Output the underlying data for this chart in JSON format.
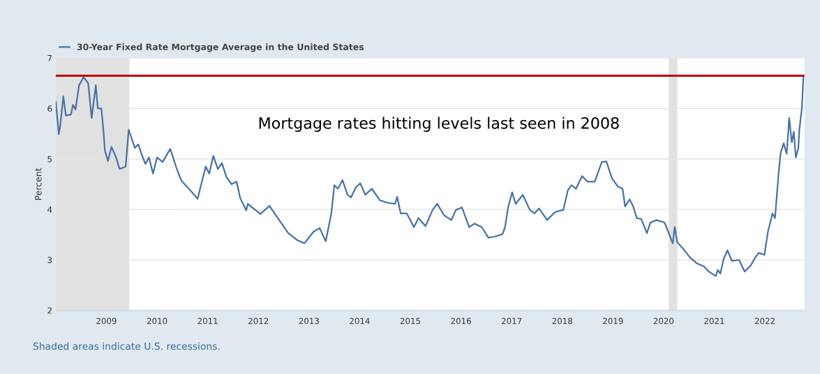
{
  "chart_data": {
    "type": "line",
    "ylabel": "Percent",
    "x": [
      2008.0,
      2008.06,
      2008.09,
      2008.15,
      2008.2,
      2008.3,
      2008.34,
      2008.39,
      2008.46,
      2008.55,
      2008.64,
      2008.71,
      2008.79,
      2008.83,
      2008.9,
      2008.94,
      2008.97,
      2009.03,
      2009.1,
      2009.19,
      2009.26,
      2009.38,
      2009.44,
      2009.56,
      2009.63,
      2009.7,
      2009.77,
      2009.84,
      2009.92,
      2010.0,
      2010.11,
      2010.26,
      2010.39,
      2010.48,
      2010.69,
      2010.8,
      2010.88,
      2010.96,
      2011.03,
      2011.11,
      2011.2,
      2011.28,
      2011.37,
      2011.47,
      2011.57,
      2011.64,
      2011.76,
      2011.79,
      2012.04,
      2012.22,
      2012.41,
      2012.59,
      2012.77,
      2012.91,
      2013.09,
      2013.21,
      2013.33,
      2013.44,
      2013.5,
      2013.57,
      2013.66,
      2013.76,
      2013.83,
      2013.92,
      2014.01,
      2014.11,
      2014.24,
      2014.4,
      2014.56,
      2014.7,
      2014.74,
      2014.81,
      2014.93,
      2015.07,
      2015.16,
      2015.3,
      2015.44,
      2015.53,
      2015.67,
      2015.81,
      2015.9,
      2016.02,
      2016.16,
      2016.27,
      2016.41,
      2016.54,
      2016.66,
      2016.82,
      2016.87,
      2016.93,
      2017.01,
      2017.08,
      2017.22,
      2017.36,
      2017.45,
      2017.54,
      2017.7,
      2017.86,
      2018.02,
      2018.11,
      2018.18,
      2018.27,
      2018.39,
      2018.5,
      2018.64,
      2018.78,
      2018.87,
      2018.98,
      2019.1,
      2019.19,
      2019.24,
      2019.33,
      2019.4,
      2019.47,
      2019.56,
      2019.67,
      2019.74,
      2019.86,
      2020.02,
      2020.11,
      2020.18,
      2020.22,
      2020.27,
      2020.38,
      2020.52,
      2020.66,
      2020.8,
      2020.89,
      2021.03,
      2021.07,
      2021.12,
      2021.19,
      2021.26,
      2021.35,
      2021.49,
      2021.6,
      2021.72,
      2021.81,
      2021.88,
      2021.99,
      2022.06,
      2022.15,
      2022.2,
      2022.27,
      2022.31,
      2022.37,
      2022.43,
      2022.48,
      2022.53,
      2022.57,
      2022.61,
      2022.66,
      2022.68,
      2022.73,
      2022.76
    ],
    "series": [
      {
        "name": "30-Year Fixed Rate Mortgage Average in the United States",
        "color": "#4572a7",
        "values": [
          6.14,
          5.49,
          5.68,
          6.24,
          5.86,
          5.88,
          6.07,
          5.98,
          6.46,
          6.62,
          6.5,
          5.81,
          6.46,
          6.0,
          6.0,
          5.58,
          5.17,
          4.96,
          5.24,
          5.03,
          4.8,
          4.85,
          5.58,
          5.22,
          5.29,
          5.08,
          4.9,
          5.03,
          4.71,
          5.03,
          4.94,
          5.2,
          4.8,
          4.57,
          4.34,
          4.21,
          4.53,
          4.85,
          4.71,
          5.06,
          4.8,
          4.92,
          4.64,
          4.5,
          4.55,
          4.23,
          3.98,
          4.11,
          3.91,
          4.07,
          3.79,
          3.53,
          3.39,
          3.33,
          3.56,
          3.63,
          3.37,
          3.92,
          4.48,
          4.41,
          4.58,
          4.29,
          4.24,
          4.43,
          4.52,
          4.29,
          4.41,
          4.18,
          4.13,
          4.11,
          4.25,
          3.92,
          3.92,
          3.65,
          3.83,
          3.67,
          3.99,
          4.11,
          3.88,
          3.79,
          3.99,
          4.04,
          3.65,
          3.72,
          3.65,
          3.44,
          3.46,
          3.51,
          3.65,
          4.04,
          4.34,
          4.11,
          4.29,
          3.99,
          3.92,
          4.02,
          3.79,
          3.95,
          3.99,
          4.38,
          4.48,
          4.41,
          4.66,
          4.55,
          4.55,
          4.94,
          4.95,
          4.62,
          4.45,
          4.41,
          4.06,
          4.2,
          4.06,
          3.83,
          3.81,
          3.53,
          3.74,
          3.79,
          3.74,
          3.51,
          3.33,
          3.65,
          3.35,
          3.23,
          3.05,
          2.93,
          2.87,
          2.77,
          2.68,
          2.8,
          2.73,
          3.03,
          3.19,
          2.98,
          3.0,
          2.77,
          2.89,
          3.05,
          3.14,
          3.1,
          3.56,
          3.92,
          3.83,
          4.71,
          5.12,
          5.31,
          5.1,
          5.81,
          5.33,
          5.54,
          5.03,
          5.21,
          5.58,
          6.0,
          6.64
        ]
      }
    ],
    "xlim": [
      2008.0,
      2022.78
    ],
    "xticks": [
      2009,
      2010,
      2011,
      2012,
      2013,
      2014,
      2015,
      2016,
      2017,
      2018,
      2019,
      2020,
      2021,
      2022
    ],
    "ylim": [
      2,
      7
    ],
    "yticks": [
      2,
      3,
      4,
      5,
      6,
      7
    ],
    "grid": "y",
    "legend": "top left",
    "ref_lines": [
      {
        "axis": "y",
        "value": 6.65,
        "color": "#c00000"
      }
    ],
    "bands": [
      {
        "axis": "x",
        "from": 2008.0,
        "to": 2009.45,
        "color": "#e1e1e1"
      },
      {
        "axis": "x",
        "from": 2020.1,
        "to": 2020.27,
        "color": "#e1e1e1"
      }
    ],
    "annotations": [
      "Mortgage rates hitting levels last seen in 2008",
      "Shaded areas indicate U.S. recessions."
    ]
  }
}
